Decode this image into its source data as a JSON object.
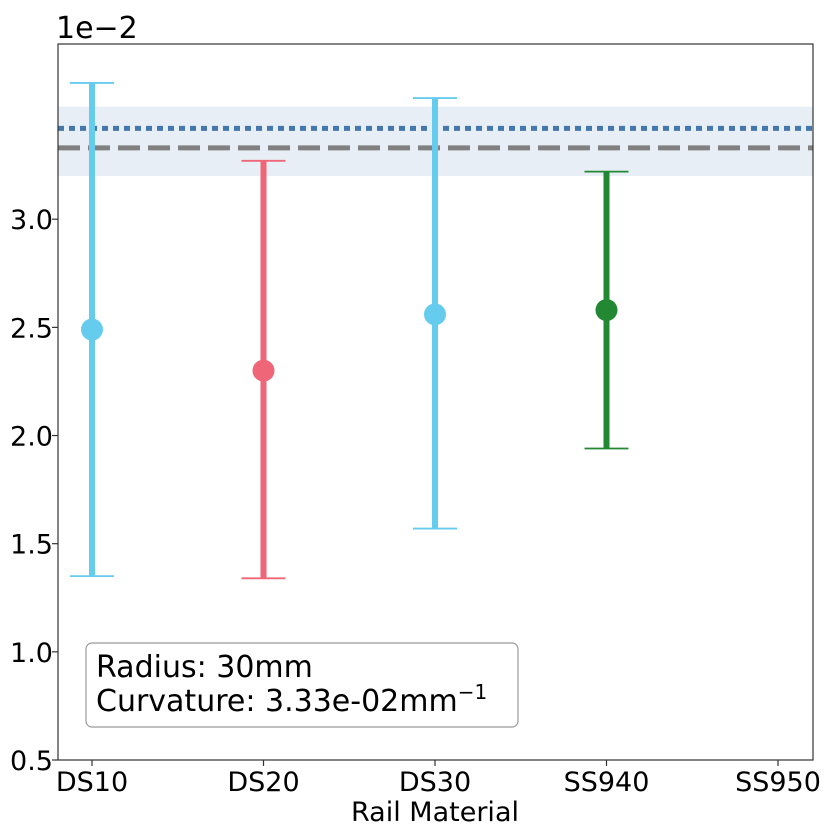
{
  "chart_data": {
    "type": "scatter",
    "xlabel": "Rail Material",
    "ylabel": "",
    "y_scale_label": "1e−2",
    "categories": [
      "DS10",
      "DS20",
      "DS30",
      "SS940",
      "SS950"
    ],
    "ylim": [
      0.005,
      0.0381
    ],
    "y_ticks": [
      0.005,
      0.01,
      0.015,
      0.02,
      0.025,
      0.03
    ],
    "y_tick_labels": [
      "0.5",
      "1.0",
      "1.5",
      "2.0",
      "2.5",
      "3.0"
    ],
    "points": [
      {
        "category": "DS10",
        "y": 0.0249,
        "y_low": 0.0135,
        "y_high": 0.0363,
        "color": "#66ccee"
      },
      {
        "category": "DS20",
        "y": 0.023,
        "y_low": 0.0134,
        "y_high": 0.0327,
        "color": "#ee6677"
      },
      {
        "category": "DS30",
        "y": 0.0256,
        "y_low": 0.0157,
        "y_high": 0.0356,
        "color": "#66ccee"
      },
      {
        "category": "SS940",
        "y": 0.0258,
        "y_low": 0.0194,
        "y_high": 0.0322,
        "color": "#228833"
      }
    ],
    "reference_lines": [
      {
        "y": 0.0333,
        "style": "dashed",
        "color": "#808080"
      },
      {
        "y": 0.0342,
        "style": "dotted",
        "color": "#4477aa",
        "band": [
          0.032,
          0.0352
        ]
      }
    ],
    "annotation": {
      "line1": "Radius: 30mm",
      "line2_prefix": "Curvature: 3.33e-02mm",
      "line2_sup": "−1"
    },
    "grid": false
  }
}
